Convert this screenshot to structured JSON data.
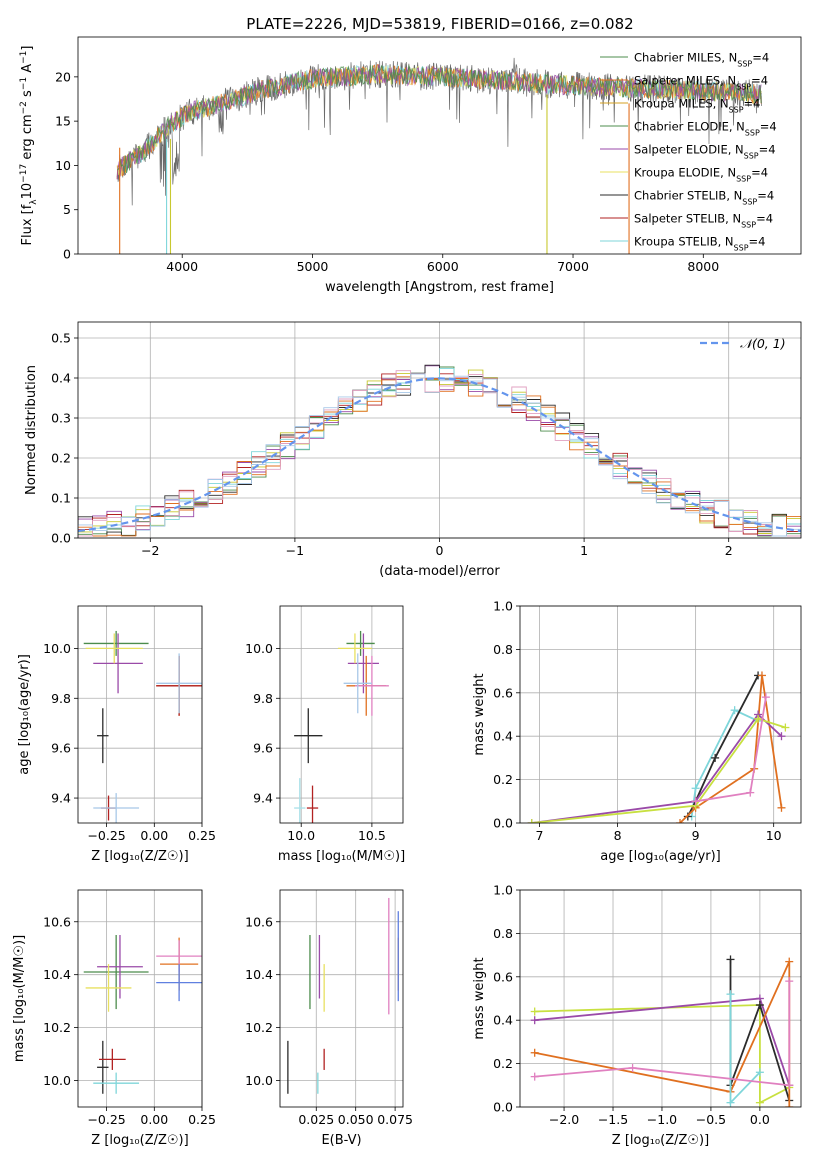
{
  "figure": {
    "title": "PLATE=2226, MJD=53819, FIBERID=0166, z=0.082",
    "colors": [
      "#4c8c4c",
      "#9a4aa8",
      "#c8c830",
      "#2b2b2b",
      "#b22222",
      "#7fd6da",
      "#e07020",
      "#e0a0c0",
      "#a8c8e8"
    ]
  },
  "chart_data": [
    {
      "id": "spectrum",
      "type": "line",
      "title": "PLATE=2226, MJD=53819, FIBERID=0166, z=0.082",
      "xlabel": "wavelength [Angstrom, rest frame]",
      "ylabel": "Flux [f_λ10^-17 erg cm^-2 s^-1 A^-1]",
      "xlim": [
        3200,
        8750
      ],
      "ylim": [
        0,
        24.5
      ],
      "xticks": [
        4000,
        5000,
        6000,
        7000,
        8000
      ],
      "yticks": [
        0,
        5,
        10,
        15,
        20
      ],
      "grid": false,
      "legend_position": "upper-right",
      "legend": [
        {
          "label": "Chabrier MILES, N",
          "sub": "SSP",
          "suffix": "=4",
          "color": "#4c8c4c"
        },
        {
          "label": "Salpeter MILES, N",
          "sub": "SSP",
          "suffix": "=4",
          "color": "#e07020"
        },
        {
          "label": "Kroupa MILES, N",
          "sub": "SSP",
          "suffix": "=4",
          "color": "#d4a020"
        },
        {
          "label": "Chabrier ELODIE, N",
          "sub": "SSP",
          "suffix": "=4",
          "color": "#4c8c4c"
        },
        {
          "label": "Salpeter ELODIE, N",
          "sub": "SSP",
          "suffix": "=4",
          "color": "#9a4aa8"
        },
        {
          "label": "Kroupa ELODIE, N",
          "sub": "SSP",
          "suffix": "=4",
          "color": "#e8e060"
        },
        {
          "label": "Chabrier STELIB, N",
          "sub": "SSP",
          "suffix": "=4",
          "color": "#2b2b2b"
        },
        {
          "label": "Salpeter STELIB, N",
          "sub": "SSP",
          "suffix": "=4",
          "color": "#b22222"
        },
        {
          "label": "Kroupa STELIB, N",
          "sub": "SSP",
          "suffix": "=4",
          "color": "#7fd6da"
        }
      ],
      "continuum": {
        "x": [
          3500,
          3700,
          3900,
          4050,
          4300,
          4600,
          5000,
          5500,
          6000,
          6500,
          7000,
          7500,
          8000,
          8500
        ],
        "y": [
          9.5,
          11.5,
          14.5,
          16.0,
          17.0,
          18.5,
          19.8,
          20.3,
          20.0,
          19.5,
          19.0,
          18.7,
          18.4,
          18.0
        ]
      }
    },
    {
      "id": "residuals",
      "type": "line",
      "xlabel": "(data-model)/error",
      "ylabel": "Normed distribution",
      "xlim": [
        -2.5,
        2.5
      ],
      "ylim": [
        0,
        0.54
      ],
      "xticks": [
        -2,
        -1,
        0,
        1,
        2
      ],
      "xtick_labels": [
        "−2",
        "−1",
        "0",
        "1",
        "2"
      ],
      "yticks": [
        0,
        0.1,
        0.2,
        0.3,
        0.4,
        0.5
      ],
      "ytick_labels": [
        "0.0",
        "0.1",
        "0.2",
        "0.3",
        "0.4",
        "0.5"
      ],
      "grid": true,
      "legend_position": "upper-right",
      "legend_label": "𝒩(0, 1)",
      "bin_width": 0.1
    },
    {
      "id": "age-vs-Z",
      "type": "scatter",
      "xlabel": "Z [log₁₀(Z/Z☉)]",
      "ylabel": "age  [log₁₀(age/yr)]",
      "xlim": [
        -0.4,
        0.25
      ],
      "ylim": [
        9.3,
        10.17
      ],
      "xticks": [
        -0.25,
        0.0,
        0.25
      ],
      "xtick_labels": [
        "−0.25",
        "0.00",
        "0.25"
      ],
      "yticks": [
        9.4,
        9.6,
        9.8,
        10.0
      ],
      "ytick_labels": [
        "9.4",
        "9.6",
        "9.8",
        "10.0"
      ],
      "grid": true,
      "errorbars": [
        {
          "x": -0.2,
          "xerr": 0.17,
          "y": 10.02,
          "yerr": 0.05,
          "color": "#4c8c4c"
        },
        {
          "x": -0.19,
          "xerr": 0.13,
          "y": 9.94,
          "yerr": 0.12,
          "color": "#9a4aa8"
        },
        {
          "x": -0.21,
          "xerr": 0.15,
          "y": 10.0,
          "yerr": 0.06,
          "color": "#e8e060"
        },
        {
          "x": 0.13,
          "xerr": 0.12,
          "y": 9.85,
          "yerr": 0.12,
          "color": "#e07020"
        },
        {
          "x": 0.13,
          "xerr": 0.12,
          "y": 9.85,
          "yerr": 0.12,
          "color": "#b22222"
        },
        {
          "x": 0.13,
          "xerr": 0.12,
          "y": 9.86,
          "yerr": 0.12,
          "color": "#a8c8e8"
        },
        {
          "x": -0.27,
          "xerr": 0.03,
          "y": 9.65,
          "yerr": 0.11,
          "color": "#2b2b2b"
        },
        {
          "x": -0.24,
          "xerr": 0.04,
          "y": 9.36,
          "yerr": 0.05,
          "color": "#b22222"
        },
        {
          "x": -0.2,
          "xerr": 0.12,
          "y": 9.36,
          "yerr": 0.06,
          "color": "#a8c8e8"
        }
      ]
    },
    {
      "id": "age-vs-mass",
      "type": "scatter",
      "xlabel": "mass [log₁₀(M/M☉)]",
      "ylabel": "",
      "xlim": [
        9.85,
        10.72
      ],
      "ylim": [
        9.3,
        10.17
      ],
      "xticks": [
        10.0,
        10.5
      ],
      "xtick_labels": [
        "10.0",
        "10.5"
      ],
      "yticks": [
        9.4,
        9.6,
        9.8,
        10.0
      ],
      "ytick_labels": [
        "9.4",
        "9.6",
        "9.8",
        "10.0"
      ],
      "grid": true,
      "errorbars": [
        {
          "x": 10.42,
          "xerr": 0.1,
          "y": 10.02,
          "yerr": 0.05,
          "color": "#4c8c4c"
        },
        {
          "x": 10.44,
          "xerr": 0.11,
          "y": 9.94,
          "yerr": 0.12,
          "color": "#9a4aa8"
        },
        {
          "x": 10.38,
          "xerr": 0.12,
          "y": 10.0,
          "yerr": 0.06,
          "color": "#e8e060"
        },
        {
          "x": 10.46,
          "xerr": 0.14,
          "y": 9.85,
          "yerr": 0.12,
          "color": "#e07020"
        },
        {
          "x": 10.5,
          "xerr": 0.12,
          "y": 9.85,
          "yerr": 0.12,
          "color": "#e080c0"
        },
        {
          "x": 10.4,
          "xerr": 0.1,
          "y": 9.86,
          "yerr": 0.12,
          "color": "#a8c8e8"
        },
        {
          "x": 10.05,
          "xerr": 0.1,
          "y": 9.65,
          "yerr": 0.11,
          "color": "#2b2b2b"
        },
        {
          "x": 10.08,
          "xerr": 0.04,
          "y": 9.36,
          "yerr": 0.09,
          "color": "#b22222"
        },
        {
          "x": 9.99,
          "xerr": 0.04,
          "y": 9.36,
          "yerr": 0.12,
          "color": "#a8e0e8"
        }
      ]
    },
    {
      "id": "mass-weight-vs-age",
      "type": "line",
      "xlabel": "age  [log₁₀(age/yr)]",
      "ylabel": "mass weight",
      "xlim": [
        6.75,
        10.35
      ],
      "ylim": [
        0,
        1
      ],
      "xticks": [
        7,
        8,
        9,
        10
      ],
      "xtick_labels": [
        "7",
        "8",
        "9",
        "10"
      ],
      "yticks": [
        0,
        0.2,
        0.4,
        0.6,
        0.8,
        1.0
      ],
      "ytick_labels": [
        "0.0",
        "0.2",
        "0.4",
        "0.6",
        "0.8",
        "1.0"
      ],
      "grid": true,
      "series": [
        {
          "color": "#7fd6da",
          "x": [
            8.95,
            9.0,
            9.5,
            9.8
          ],
          "y": [
            0.03,
            0.16,
            0.52,
            0.47
          ]
        },
        {
          "color": "#2b2b2b",
          "x": [
            8.9,
            9.0,
            9.25,
            9.8
          ],
          "y": [
            0.03,
            0.1,
            0.3,
            0.68
          ]
        },
        {
          "color": "#e07020",
          "x": [
            8.8,
            9.0,
            9.75,
            9.85,
            10.1
          ],
          "y": [
            0.0,
            0.07,
            0.25,
            0.68,
            0.07
          ]
        },
        {
          "color": "#9a4aa8",
          "x": [
            6.9,
            9.0,
            9.8,
            10.1
          ],
          "y": [
            0.0,
            0.1,
            0.5,
            0.4
          ]
        },
        {
          "color": "#c8e040",
          "x": [
            6.9,
            9.0,
            9.8,
            10.15
          ],
          "y": [
            0.0,
            0.08,
            0.48,
            0.44
          ]
        },
        {
          "color": "#e080c0",
          "x": [
            9.0,
            9.7,
            9.9
          ],
          "y": [
            0.1,
            0.14,
            0.58
          ]
        }
      ]
    },
    {
      "id": "mass-vs-Z",
      "type": "scatter",
      "xlabel": "Z [log₁₀(Z/Z☉)]",
      "ylabel": "mass [log₁₀(M/M☉)]",
      "xlim": [
        -0.4,
        0.25
      ],
      "ylim": [
        9.9,
        10.72
      ],
      "xticks": [
        -0.25,
        0.0,
        0.25
      ],
      "xtick_labels": [
        "−0.25",
        "0.00",
        "0.25"
      ],
      "yticks": [
        10.0,
        10.2,
        10.4,
        10.6
      ],
      "ytick_labels": [
        "10.0",
        "10.2",
        "10.4",
        "10.6"
      ],
      "grid": true,
      "errorbars": [
        {
          "x": -0.2,
          "xerr": 0.17,
          "y": 10.41,
          "yerr": 0.14,
          "color": "#4c8c4c"
        },
        {
          "x": -0.18,
          "xerr": 0.12,
          "y": 10.43,
          "yerr": 0.12,
          "color": "#9a4aa8"
        },
        {
          "x": -0.24,
          "xerr": 0.12,
          "y": 10.35,
          "yerr": 0.09,
          "color": "#e8e060"
        },
        {
          "x": 0.13,
          "xerr": 0.1,
          "y": 10.44,
          "yerr": 0.1,
          "color": "#e07020"
        },
        {
          "x": 0.13,
          "xerr": 0.12,
          "y": 10.47,
          "yerr": 0.06,
          "color": "#e080c0"
        },
        {
          "x": 0.13,
          "xerr": 0.12,
          "y": 10.37,
          "yerr": 0.07,
          "color": "#6080e0"
        },
        {
          "x": -0.27,
          "xerr": 0.03,
          "y": 10.05,
          "yerr": 0.1,
          "color": "#2b2b2b"
        },
        {
          "x": -0.22,
          "xerr": 0.07,
          "y": 10.08,
          "yerr": 0.04,
          "color": "#b22222"
        },
        {
          "x": -0.2,
          "xerr": 0.12,
          "y": 9.99,
          "yerr": 0.04,
          "color": "#7fd6da"
        }
      ]
    },
    {
      "id": "mass-vs-ebv",
      "type": "scatter",
      "xlabel": "E(B-V)",
      "ylabel": "",
      "xlim": [
        0.002,
        0.08
      ],
      "ylim": [
        9.9,
        10.72
      ],
      "xticks": [
        0.025,
        0.05,
        0.075
      ],
      "xtick_labels": [
        "0.025",
        "0.050",
        "0.075"
      ],
      "yticks": [
        10.0,
        10.2,
        10.4,
        10.6
      ],
      "ytick_labels": [
        "10.0",
        "10.2",
        "10.4",
        "10.6"
      ],
      "grid": true,
      "errorbars": [
        {
          "x": 0.021,
          "y": 10.41,
          "yerr": 0.14,
          "color": "#4c8c4c"
        },
        {
          "x": 0.027,
          "y": 10.43,
          "yerr": 0.12,
          "color": "#9a4aa8"
        },
        {
          "x": 0.03,
          "y": 10.35,
          "yerr": 0.09,
          "color": "#e8e060"
        },
        {
          "x": 0.077,
          "y": 10.44,
          "yerr": 0.1,
          "color": "#e07020"
        },
        {
          "x": 0.071,
          "y": 10.47,
          "yerr": 0.22,
          "color": "#e080c0"
        },
        {
          "x": 0.077,
          "y": 10.47,
          "yerr": 0.17,
          "color": "#6080e0"
        },
        {
          "x": 0.007,
          "y": 10.05,
          "yerr": 0.1,
          "color": "#2b2b2b"
        },
        {
          "x": 0.03,
          "y": 10.08,
          "yerr": 0.04,
          "color": "#b22222"
        },
        {
          "x": 0.026,
          "y": 9.99,
          "yerr": 0.04,
          "color": "#7fd6da"
        }
      ]
    },
    {
      "id": "mass-weight-vs-Z",
      "type": "line",
      "xlabel": "Z [log₁₀(Z/Z☉)]",
      "ylabel": "mass weight",
      "xlim": [
        -2.45,
        0.42
      ],
      "ylim": [
        0,
        1
      ],
      "xticks": [
        -2.0,
        -1.5,
        -1.0,
        -0.5,
        0.0
      ],
      "xtick_labels": [
        "−2.0",
        "−1.5",
        "−1.0",
        "−0.5",
        "0.0"
      ],
      "yticks": [
        0,
        0.2,
        0.4,
        0.6,
        0.8,
        1.0
      ],
      "ytick_labels": [
        "0.0",
        "0.2",
        "0.4",
        "0.6",
        "0.8",
        "1.0"
      ],
      "grid": true,
      "series": [
        {
          "color": "#c8e040",
          "x": [
            -2.3,
            0.0,
            0.0,
            0.3
          ],
          "y": [
            0.44,
            0.47,
            0.02,
            0.09
          ]
        },
        {
          "color": "#9a4aa8",
          "x": [
            -2.3,
            0.0,
            0.3
          ],
          "y": [
            0.4,
            0.5,
            0.1
          ]
        },
        {
          "color": "#2b2b2b",
          "x": [
            -0.3,
            -0.3,
            0.0,
            0.3
          ],
          "y": [
            0.68,
            0.1,
            0.47,
            0.03
          ]
        },
        {
          "color": "#e07020",
          "x": [
            -2.3,
            -0.3,
            0.3,
            0.3
          ],
          "y": [
            0.25,
            0.07,
            0.67,
            0.0
          ]
        },
        {
          "color": "#7fd6da",
          "x": [
            -0.3,
            -0.3,
            0.0
          ],
          "y": [
            0.52,
            0.02,
            0.16
          ]
        },
        {
          "color": "#e080c0",
          "x": [
            -2.3,
            -1.3,
            0.3,
            0.3
          ],
          "y": [
            0.14,
            0.18,
            0.1,
            0.58
          ]
        }
      ]
    }
  ]
}
